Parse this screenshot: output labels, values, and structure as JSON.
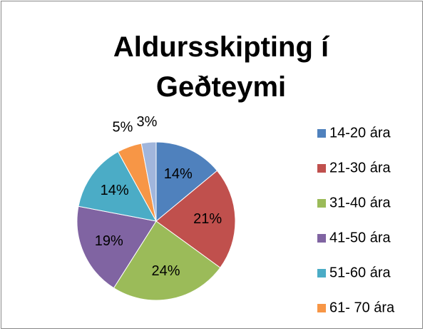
{
  "chart_data": {
    "type": "pie",
    "title": "Aldursskipting í Geðteymi",
    "categories": [
      "14-20 ára",
      "21-30 ára",
      "31-40 ára",
      "41-50 ára",
      "51-60 ára",
      "61- 70 ára",
      null
    ],
    "values": [
      14,
      21,
      24,
      19,
      14,
      5,
      3
    ],
    "value_labels": [
      "14%",
      "21%",
      "24%",
      "19%",
      "14%",
      "5%",
      "3%"
    ],
    "colors": [
      "#4f81bd",
      "#c0504d",
      "#9bbb59",
      "#8064a2",
      "#4bacc6",
      "#f79646",
      "#a1b6dc"
    ],
    "legend": "right"
  }
}
